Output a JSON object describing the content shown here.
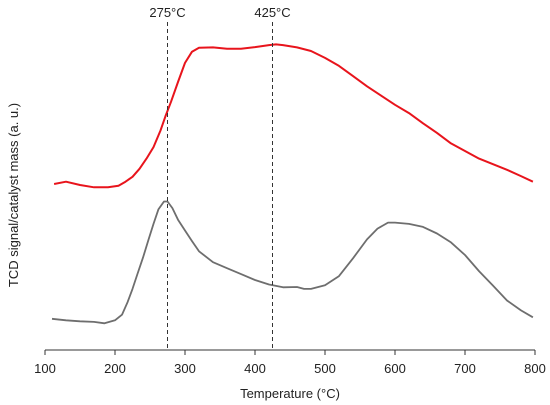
{
  "chart_data": {
    "type": "line",
    "title": "",
    "xlabel": "Temperature (°C)",
    "ylabel": "TCD signal/catalyst mass (a. u.)",
    "xlim": [
      100,
      800
    ],
    "x_ticks": [
      100,
      200,
      300,
      400,
      500,
      600,
      700,
      800
    ],
    "x_tick_labels": [
      "100",
      "200",
      "300",
      "400",
      "500",
      "600",
      "700",
      "800"
    ],
    "ylim": [
      0,
      1
    ],
    "y_ticks_shown": false,
    "grid": false,
    "legend": "none",
    "annotations": [
      {
        "x": 275,
        "label": "275°C",
        "style": "dashed-vertical"
      },
      {
        "x": 425,
        "label": "425°C",
        "style": "dashed-vertical"
      }
    ],
    "series": [
      {
        "color": "#e8141c",
        "x": [
          113,
          130,
          150,
          170,
          190,
          205,
          215,
          225,
          235,
          245,
          255,
          265,
          272,
          280,
          290,
          300,
          310,
          320,
          340,
          360,
          380,
          400,
          420,
          430,
          440,
          460,
          480,
          500,
          520,
          540,
          560,
          580,
          600,
          620,
          640,
          660,
          680,
          700,
          720,
          740,
          760,
          780,
          797
        ],
        "y": [
          0.503,
          0.51,
          0.5,
          0.493,
          0.493,
          0.498,
          0.51,
          0.525,
          0.549,
          0.58,
          0.615,
          0.665,
          0.708,
          0.752,
          0.812,
          0.87,
          0.904,
          0.916,
          0.917,
          0.913,
          0.913,
          0.918,
          0.924,
          0.926,
          0.924,
          0.917,
          0.906,
          0.885,
          0.861,
          0.83,
          0.799,
          0.771,
          0.743,
          0.718,
          0.687,
          0.658,
          0.626,
          0.603,
          0.58,
          0.563,
          0.546,
          0.527,
          0.51
        ]
      },
      {
        "color": "#6e6e6e",
        "x": [
          110,
          130,
          150,
          170,
          185,
          200,
          210,
          218,
          225,
          232,
          240,
          248,
          255,
          262,
          270,
          275,
          282,
          290,
          300,
          310,
          320,
          340,
          360,
          380,
          400,
          420,
          440,
          460,
          470,
          480,
          500,
          520,
          540,
          560,
          575,
          590,
          600,
          620,
          640,
          660,
          680,
          700,
          720,
          740,
          760,
          780,
          797
        ],
        "y": [
          0.0945,
          0.09,
          0.087,
          0.085,
          0.081,
          0.09,
          0.107,
          0.145,
          0.185,
          0.23,
          0.28,
          0.335,
          0.382,
          0.426,
          0.45,
          0.45,
          0.43,
          0.395,
          0.362,
          0.33,
          0.299,
          0.266,
          0.248,
          0.23,
          0.212,
          0.1985,
          0.19,
          0.191,
          0.185,
          0.185,
          0.196,
          0.224,
          0.278,
          0.335,
          0.368,
          0.386,
          0.386,
          0.382,
          0.373,
          0.353,
          0.326,
          0.288,
          0.239,
          0.195,
          0.15,
          0.12,
          0.099
        ]
      }
    ]
  }
}
